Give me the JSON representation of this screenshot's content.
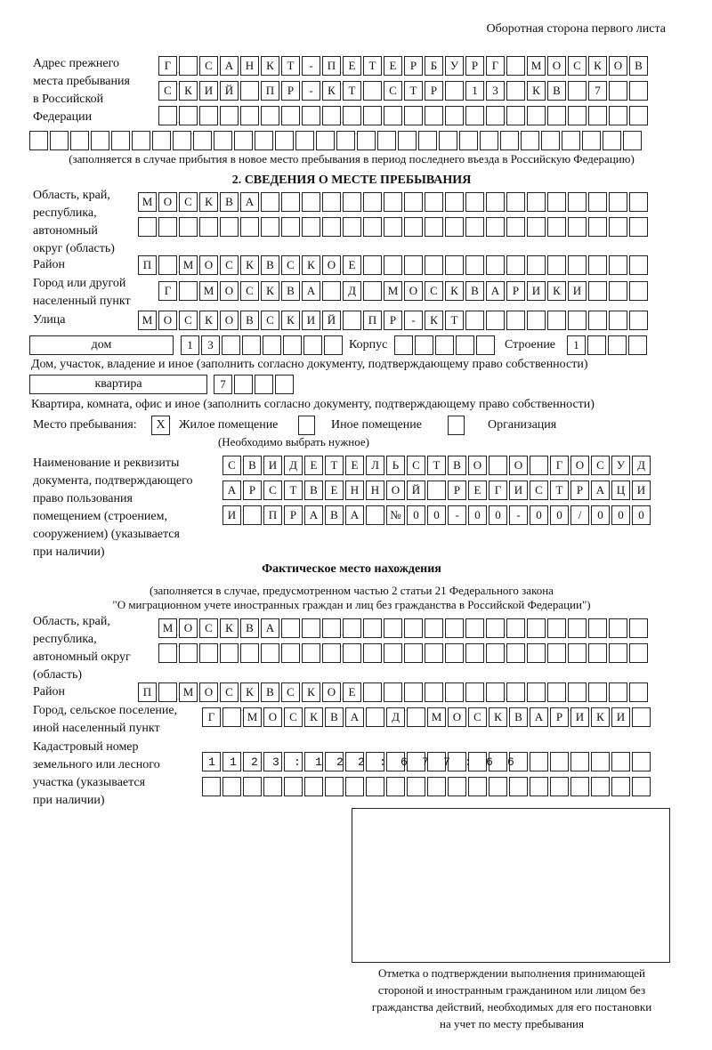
{
  "header": "Оборотная сторона первого листа",
  "prev_address": {
    "label": [
      "Адрес прежнего",
      "места пребывания",
      "в Российской",
      "Федерации"
    ],
    "rows": [
      "Г САНКТ-ПЕТЕРБУРГ МОСКОВ",
      "СКИЙ ПР-КТ СТР 13 КВ 7  ",
      "                        ",
      "                              "
    ],
    "note": "(заполняется в случае прибытия в новое место пребывания в период последнего въезда в Российскую Федерацию)"
  },
  "section2": {
    "title": "2. СВЕДЕНИЯ О МЕСТЕ ПРЕБЫВАНИЯ",
    "region_label": [
      "Область, край,",
      "республика,",
      "автономный",
      "округ (область)"
    ],
    "region_rows": [
      "МОСКВА                   ",
      "                         "
    ],
    "district_label": "Район",
    "district_row": "П МОСКВСКОЕ              ",
    "city_label": [
      "Город или другой",
      "населенный пункт"
    ],
    "city_row": "Г МОСКВА Д МОСКВАРИКИ   ",
    "street_label": "Улица",
    "street_row": "МОСКОВСКИЙ ПР-КТ         ",
    "house_type": "дом",
    "house_cells": "13      ",
    "korpus_label": "Корпус",
    "korpus_cells": "     ",
    "building_label": "Строение",
    "building_cells": "1   ",
    "house_note": "Дом, участок, владение и иное (заполнить согласно документу, подтверждающему право собственности)",
    "flat_type": "квартира",
    "flat_cells": "7   ",
    "flat_note": "Квартира, комната, офис и иное (заполнить согласно документу, подтверждающему право собственности)",
    "place_label": "Место пребывания:",
    "place_options": [
      {
        "mark": "X",
        "label": "Жилое помещение"
      },
      {
        "mark": "",
        "label": "Иное помещение"
      },
      {
        "mark": "",
        "label": "Организация"
      }
    ],
    "place_note": "(Необходимо выбрать нужное)",
    "doc_label": [
      "Наименование и реквизиты",
      "документа, подтверждающего",
      "право пользования",
      "помещением (строением,",
      "сооружением) (указывается",
      "при наличии)"
    ],
    "doc_rows": [
      "СВИДЕТЕЛЬСТВО О ГОСУД",
      "АРСТВЕННОЙ РЕГИСТРАЦИ",
      "И ПРАВА №00-00-00/000"
    ]
  },
  "actual": {
    "title": "Фактическое место нахождения",
    "note1": "(заполняется в случае, предусмотренном частью 2 статьи 21 Федерального закона",
    "note2": "\"О миграционном учете иностранных граждан и лиц без гражданства в Российской Федерации\")",
    "region_label": [
      "Область, край,",
      "республика,",
      "автономный округ",
      "(область)"
    ],
    "region_rows": [
      "МОСКВА                  ",
      "                        "
    ],
    "district_label": "Район",
    "district_row": "П МОСКВСКОЕ              ",
    "city_label": [
      "Город, сельское поселение,",
      "иной населенный пункт"
    ],
    "city_row": "Г МОСКВА Д МОСКВАРИКИ ",
    "cadastre_label": [
      "Кадастровый номер",
      "земельного или лесного",
      "участка (указывается",
      "при наличии)"
    ],
    "cadastre_rows": [
      "1123:122:677:66       ",
      "                      "
    ]
  },
  "stamp_caption": [
    "Отметка о подтверждении выполнения принимающей",
    "стороной и иностранным гражданином или лицом без",
    "гражданства действий, необходимых для его постановки",
    "на учет по месту пребывания"
  ]
}
